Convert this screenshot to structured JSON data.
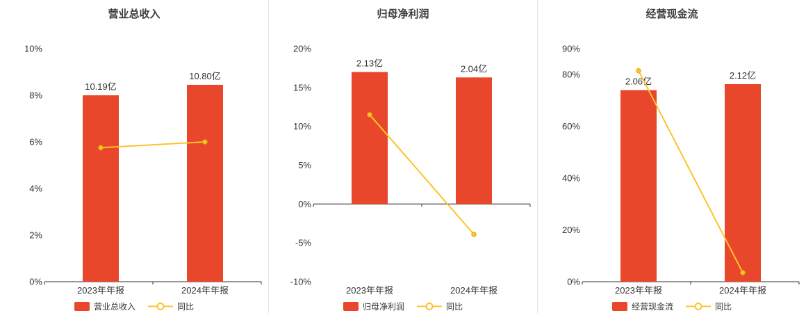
{
  "colors": {
    "bar": "#e8472c",
    "line": "#fdc32c",
    "line_point_stroke": "#e3ab00",
    "axis": "#5a5a5a",
    "text": "#333333",
    "divider": "#e4e4e4"
  },
  "chart_data": [
    {
      "type": "bar",
      "title": "营业总收入",
      "categories": [
        "2023年年报",
        "2024年年报"
      ],
      "ylim": [
        0,
        10
      ],
      "yticks": [
        0,
        2,
        4,
        6,
        8,
        10
      ],
      "grid": false,
      "legend_position": "bottom",
      "series": [
        {
          "name": "营业总收入",
          "kind": "bar",
          "values": [
            8.0,
            8.45
          ],
          "labels": [
            "10.19亿",
            "10.80亿"
          ]
        },
        {
          "name": "同比",
          "kind": "line",
          "values": [
            5.75,
            6.0
          ]
        }
      ]
    },
    {
      "type": "bar",
      "title": "归母净利润",
      "categories": [
        "2023年年报",
        "2024年年报"
      ],
      "ylim": [
        -10,
        20
      ],
      "yticks": [
        -10,
        -5,
        0,
        5,
        10,
        15,
        20
      ],
      "grid": false,
      "legend_position": "bottom",
      "series": [
        {
          "name": "归母净利润",
          "kind": "bar",
          "values": [
            17.0,
            16.3
          ],
          "labels": [
            "2.13亿",
            "2.04亿"
          ]
        },
        {
          "name": "同比",
          "kind": "line",
          "values": [
            11.5,
            -3.9
          ]
        }
      ]
    },
    {
      "type": "bar",
      "title": "经营现金流",
      "categories": [
        "2023年年报",
        "2024年年报"
      ],
      "ylim": [
        0,
        90
      ],
      "yticks": [
        0,
        20,
        40,
        60,
        80,
        90
      ],
      "grid": false,
      "legend_position": "bottom",
      "series": [
        {
          "name": "经营现金流",
          "kind": "bar",
          "values": [
            74.0,
            76.3
          ],
          "labels": [
            "2.06亿",
            "2.12亿"
          ]
        },
        {
          "name": "同比",
          "kind": "line",
          "values": [
            81.5,
            3.5
          ]
        }
      ]
    }
  ]
}
